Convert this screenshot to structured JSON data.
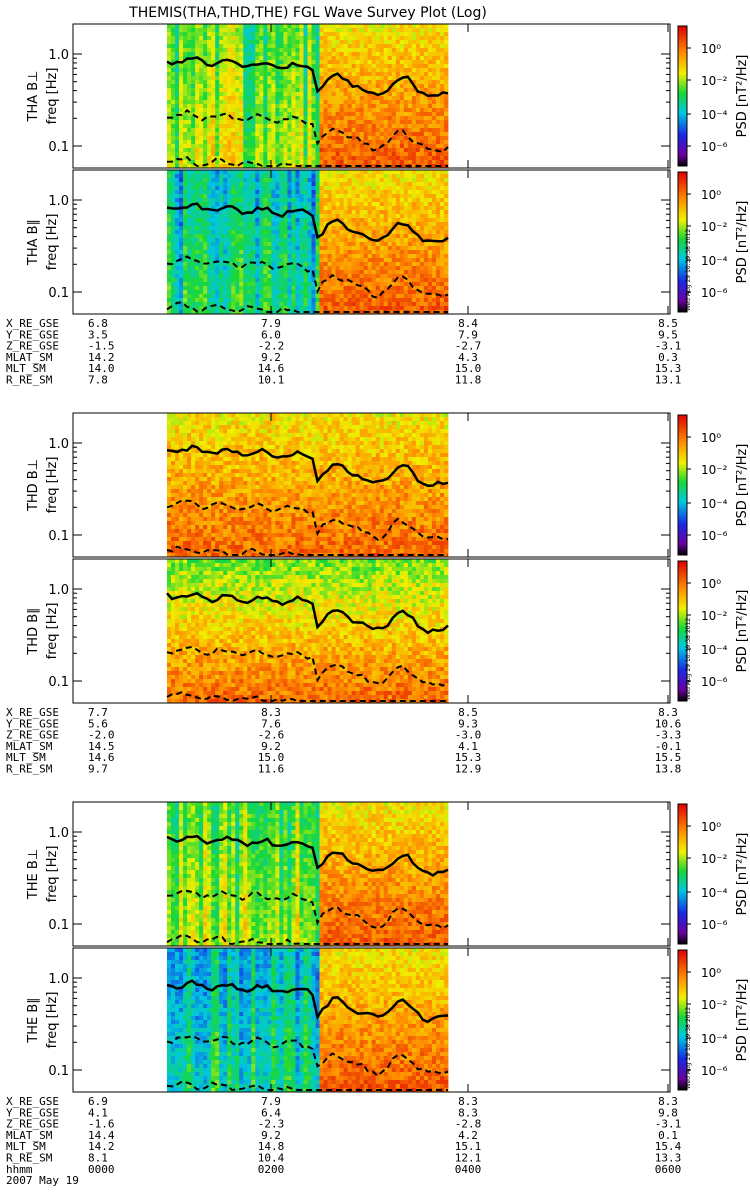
{
  "chart_data": {
    "type": "heatmap",
    "title": "THEMIS(THA,THD,THE) FGL Wave Survey Plot (Log)",
    "x_tick_labels": [
      "0000",
      "0200",
      "0400",
      "0600"
    ],
    "x_row_label": "hhmm",
    "date_label": "2007 May 19",
    "freq_unit": "freq [Hz]",
    "y_tick_labels": [
      "1.0",
      "0.1"
    ],
    "colorbar": {
      "label": "PSD [nT²/Hz]",
      "ticks": [
        "10⁰",
        "10⁻²",
        "10⁻⁴",
        "10⁻⁶"
      ],
      "stamp": "Wed Aug 29 10:39:38 2012"
    },
    "probes": [
      {
        "id": "THA",
        "panels": [
          {
            "label": "THA B⊥",
            "pattern": "quietfirst"
          },
          {
            "label": "THA B∥",
            "pattern": "quietfirst_low"
          }
        ],
        "ephemeris": {
          "names": [
            "X_RE_GSE",
            "Y_RE_GSE",
            "Z_RE_GSE",
            "MLAT_SM",
            "MLT_SM",
            "R_RE_SM"
          ],
          "cols": [
            [
              "6.8",
              "3.5",
              "-1.5",
              "14.2",
              "14.0",
              "7.8"
            ],
            [
              "7.9",
              "6.0",
              "-2.2",
              "9.2",
              "14.6",
              "10.1"
            ],
            [
              "8.4",
              "7.9",
              "-2.7",
              "4.3",
              "15.0",
              "11.8"
            ],
            [
              "8.5",
              "9.5",
              "-3.1",
              "0.3",
              "15.3",
              "13.1"
            ]
          ]
        }
      },
      {
        "id": "THD",
        "panels": [
          {
            "label": "THD B⊥",
            "pattern": "active"
          },
          {
            "label": "THD B∥",
            "pattern": "active_top"
          }
        ],
        "ephemeris": {
          "names": [
            "X_RE_GSE",
            "Y_RE_GSE",
            "Z_RE_GSE",
            "MLAT_SM",
            "MLT_SM",
            "R_RE_SM"
          ],
          "cols": [
            [
              "7.7",
              "5.6",
              "-2.0",
              "14.5",
              "14.6",
              "9.7"
            ],
            [
              "8.3",
              "7.6",
              "-2.6",
              "9.2",
              "15.0",
              "11.6"
            ],
            [
              "8.5",
              "9.3",
              "-3.0",
              "4.1",
              "15.3",
              "12.9"
            ],
            [
              "8.3",
              "10.6",
              "-3.3",
              "-0.1",
              "15.5",
              "13.8"
            ]
          ]
        }
      },
      {
        "id": "THE",
        "panels": [
          {
            "label": "THE B⊥",
            "pattern": "quietfirst"
          },
          {
            "label": "THE B∥",
            "pattern": "quietfirst_low"
          }
        ],
        "ephemeris": {
          "names": [
            "X_RE_GSE",
            "Y_RE_GSE",
            "Z_RE_GSE",
            "MLAT_SM",
            "MLT_SM",
            "R_RE_SM"
          ],
          "cols": [
            [
              "6.9",
              "4.1",
              "-1.6",
              "14.4",
              "14.2",
              "8.1"
            ],
            [
              "7.9",
              "6.4",
              "-2.3",
              "9.2",
              "14.8",
              "10.4"
            ],
            [
              "8.3",
              "8.3",
              "-2.8",
              "4.2",
              "15.1",
              "12.1"
            ],
            [
              "8.3",
              "9.8",
              "-3.1",
              "0.1",
              "15.4",
              "13.3"
            ]
          ]
        }
      }
    ]
  }
}
